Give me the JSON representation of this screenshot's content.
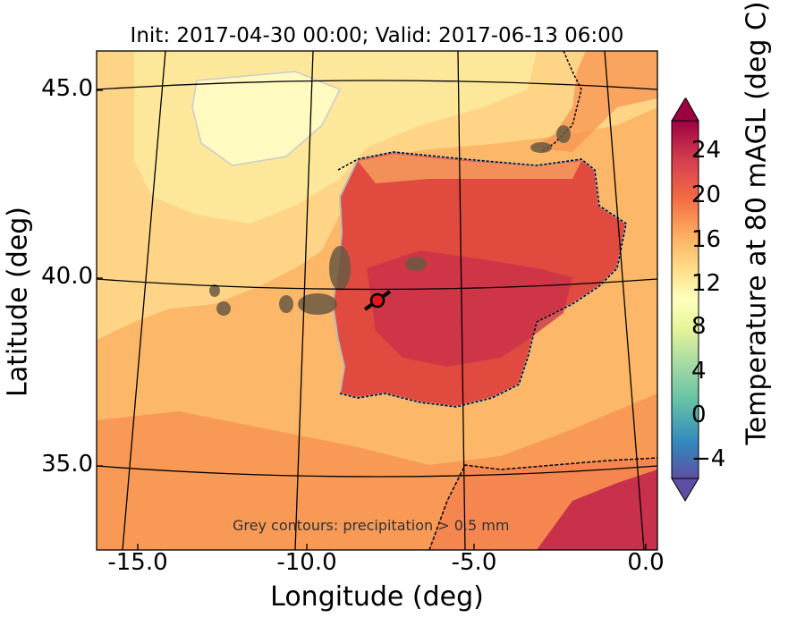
{
  "title": "Init: 2017-04-30 00:00; Valid: 2017-06-13 06:00",
  "axes": {
    "xlabel": "Longitude (deg)",
    "ylabel": "Latitude (deg)",
    "xticks": [
      "-15.0",
      "-10.0",
      "-5.0",
      "0.0"
    ],
    "yticks": [
      "45.0",
      "40.0",
      "35.0"
    ]
  },
  "colorbar": {
    "label": "Temperature at 80 mAGL (deg C)",
    "ticks": [
      "24",
      "20",
      "16",
      "12",
      "8",
      "4",
      "0",
      "−4"
    ],
    "colors": [
      "#5e4fa2",
      "#3288bd",
      "#66c2a5",
      "#abdda4",
      "#e6f598",
      "#ffffbf",
      "#fee08b",
      "#fdae61",
      "#f46d43",
      "#d53e4f",
      "#9e0142"
    ]
  },
  "annotation": "Grey contours: precipitation  > 0.5 mm",
  "marker": {
    "label": "site",
    "color": "#e8141c"
  },
  "colors": {
    "sea": "#fbb064",
    "land": "#e0453e",
    "cool": "#fde89a"
  }
}
